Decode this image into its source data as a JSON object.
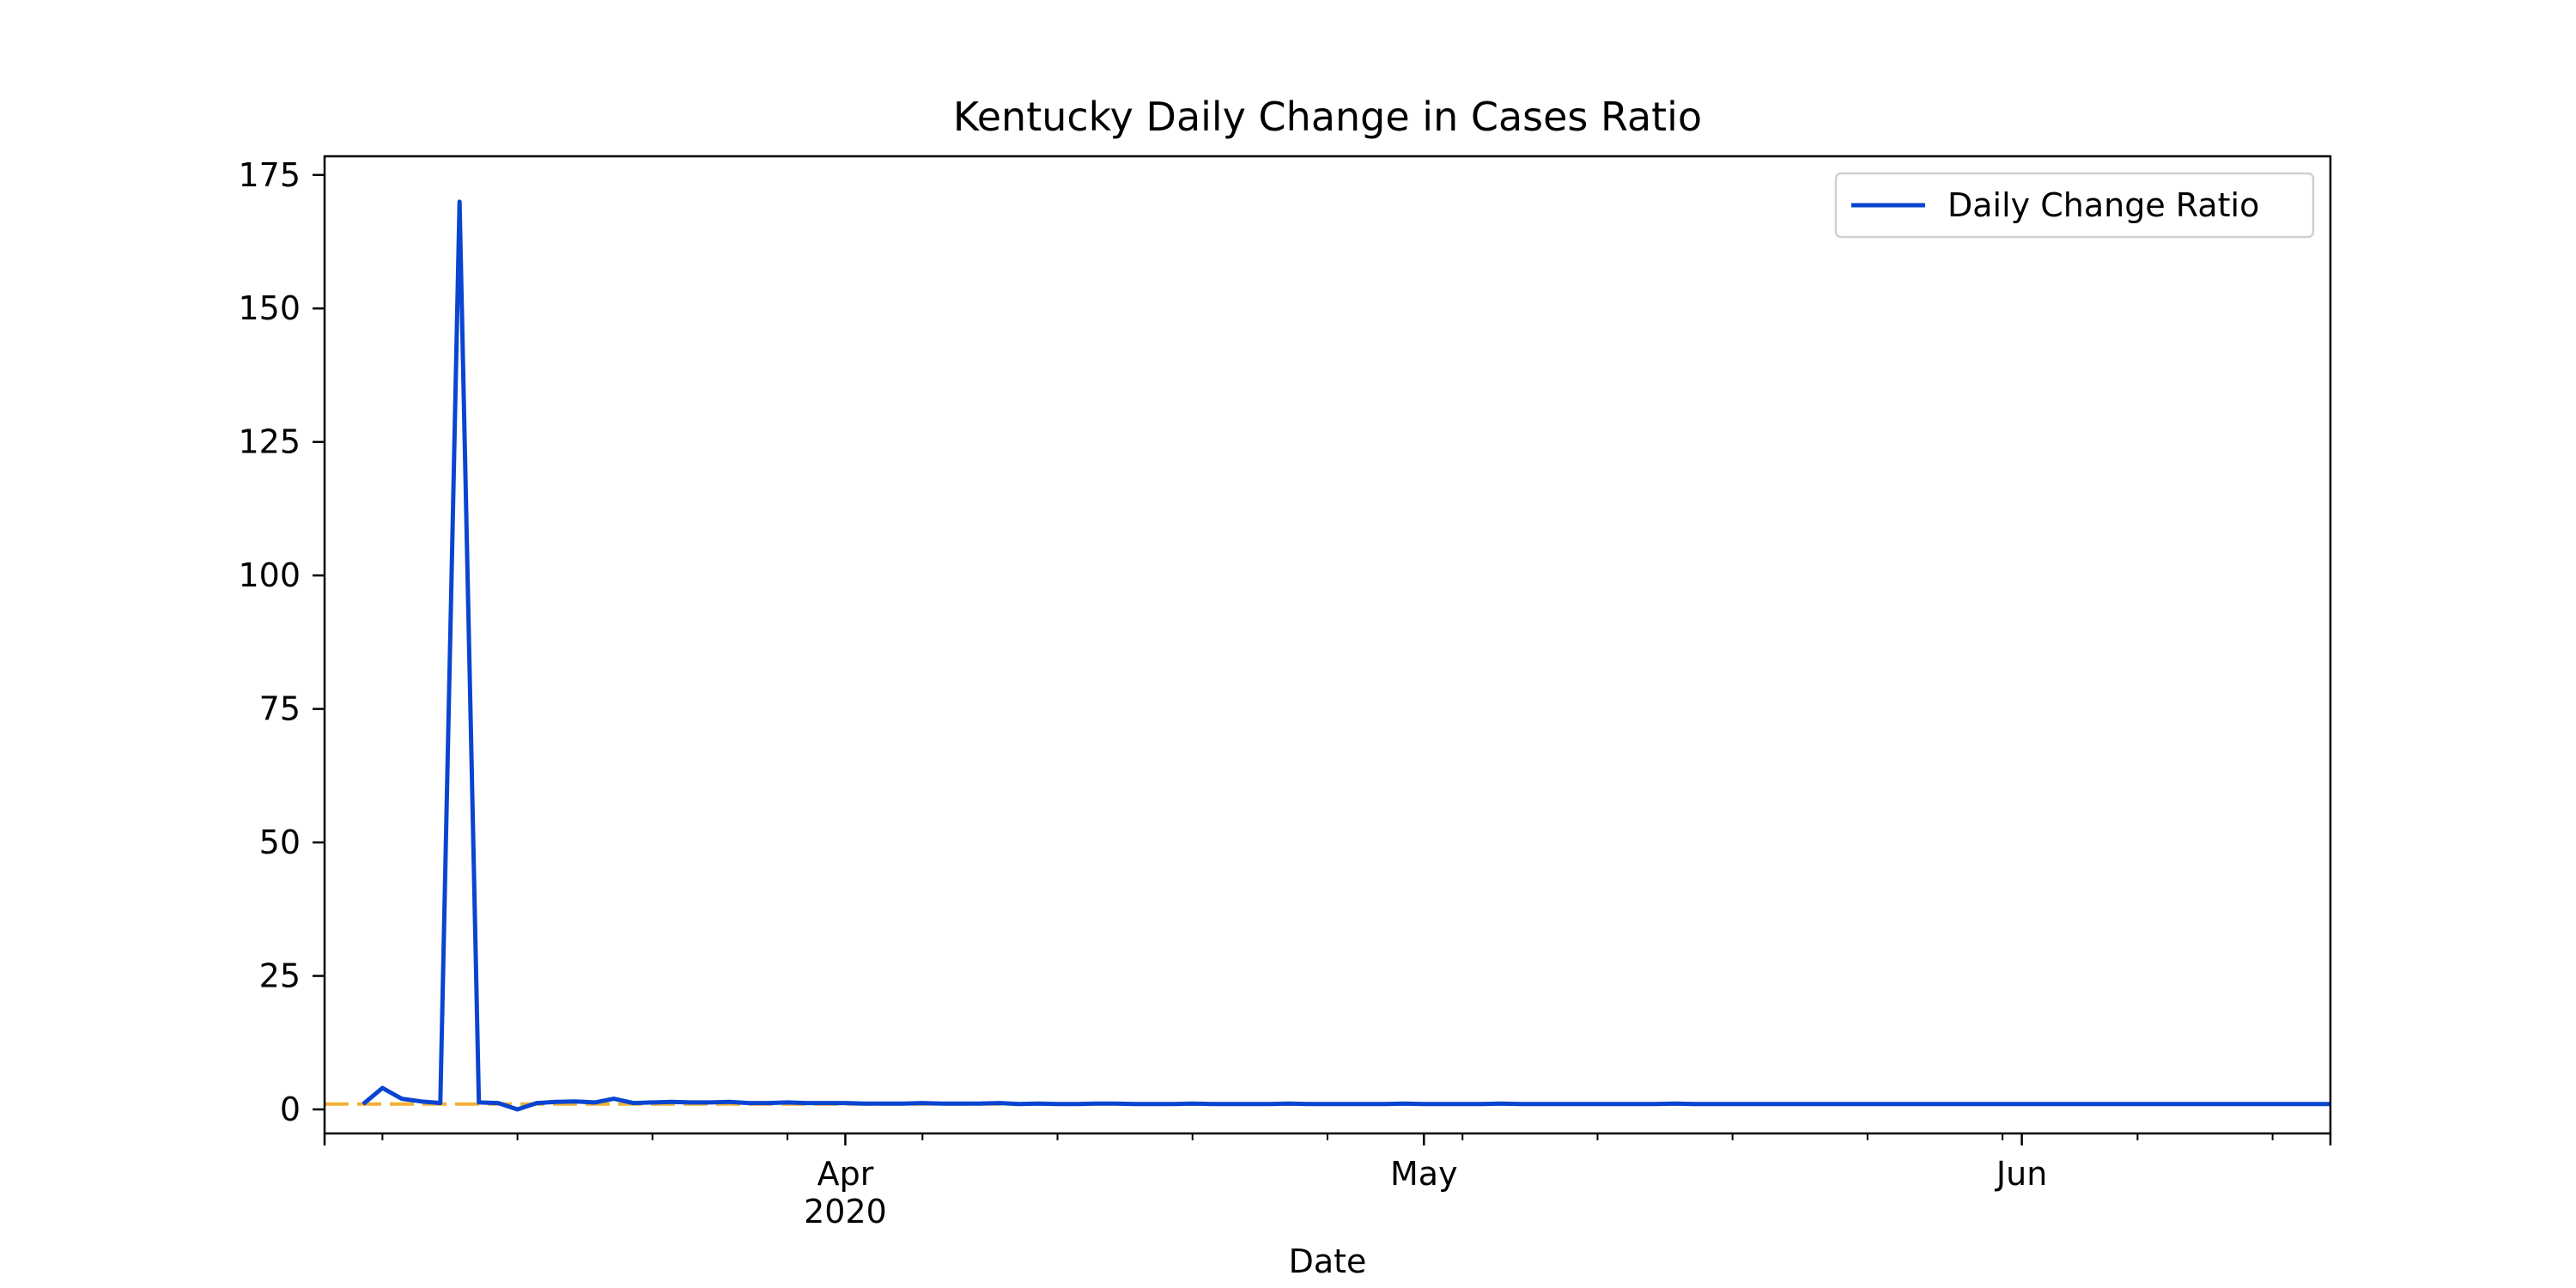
{
  "chart_data": {
    "type": "line",
    "title": "Kentucky Daily Change in Cases Ratio",
    "xlabel": "Date",
    "ylabel": "",
    "x_range": [
      "2020-03-05",
      "2020-06-17"
    ],
    "ylim": [
      -4.5,
      178.5
    ],
    "y_ticks": [
      0,
      25,
      50,
      75,
      100,
      125,
      150,
      175
    ],
    "x_major_ticks": [
      {
        "date": "2020-04-01",
        "label": "Apr",
        "sublabel": "2020"
      },
      {
        "date": "2020-05-01",
        "label": "May",
        "sublabel": ""
      },
      {
        "date": "2020-06-01",
        "label": "Jun",
        "sublabel": ""
      }
    ],
    "x_minor_ticks": [
      "2020-03-08",
      "2020-03-15",
      "2020-03-22",
      "2020-03-29",
      "2020-04-05",
      "2020-04-12",
      "2020-04-19",
      "2020-04-26",
      "2020-05-03",
      "2020-05-10",
      "2020-05-17",
      "2020-05-24",
      "2020-05-31",
      "2020-06-07",
      "2020-06-14"
    ],
    "grid": false,
    "legend": {
      "placement": "top-right",
      "entries": [
        "Daily Change Ratio"
      ]
    },
    "reference_line": {
      "y": 1.0,
      "color": "#f2b134",
      "style": "dashed"
    },
    "series": [
      {
        "name": "Daily Change Ratio",
        "color": "#0a45d1",
        "x": [
          "2020-03-07",
          "2020-03-08",
          "2020-03-09",
          "2020-03-10",
          "2020-03-11",
          "2020-03-12",
          "2020-03-13",
          "2020-03-14",
          "2020-03-15",
          "2020-03-16",
          "2020-03-17",
          "2020-03-18",
          "2020-03-19",
          "2020-03-20",
          "2020-03-21",
          "2020-03-22",
          "2020-03-23",
          "2020-03-24",
          "2020-03-25",
          "2020-03-26",
          "2020-03-27",
          "2020-03-28",
          "2020-03-29",
          "2020-03-30",
          "2020-03-31",
          "2020-04-01",
          "2020-04-02",
          "2020-04-03",
          "2020-04-04",
          "2020-04-05",
          "2020-04-06",
          "2020-04-07",
          "2020-04-08",
          "2020-04-09",
          "2020-04-10",
          "2020-04-11",
          "2020-04-12",
          "2020-04-13",
          "2020-04-14",
          "2020-04-15",
          "2020-04-16",
          "2020-04-17",
          "2020-04-18",
          "2020-04-19",
          "2020-04-20",
          "2020-04-21",
          "2020-04-22",
          "2020-04-23",
          "2020-04-24",
          "2020-04-25",
          "2020-04-26",
          "2020-04-27",
          "2020-04-28",
          "2020-04-29",
          "2020-04-30",
          "2020-05-01",
          "2020-05-02",
          "2020-05-03",
          "2020-05-04",
          "2020-05-05",
          "2020-05-06",
          "2020-05-07",
          "2020-05-08",
          "2020-05-09",
          "2020-05-10",
          "2020-05-11",
          "2020-05-12",
          "2020-05-13",
          "2020-05-14",
          "2020-05-15",
          "2020-05-16",
          "2020-05-17",
          "2020-05-18",
          "2020-05-19",
          "2020-05-20",
          "2020-05-21",
          "2020-05-22",
          "2020-05-23",
          "2020-05-24",
          "2020-05-25",
          "2020-05-26",
          "2020-05-27",
          "2020-05-28",
          "2020-05-29",
          "2020-05-30",
          "2020-05-31",
          "2020-06-01",
          "2020-06-02",
          "2020-06-03",
          "2020-06-04",
          "2020-06-05",
          "2020-06-06",
          "2020-06-07",
          "2020-06-08",
          "2020-06-09",
          "2020-06-10",
          "2020-06-11",
          "2020-06-12",
          "2020-06-13",
          "2020-06-14",
          "2020-06-15",
          "2020-06-16",
          "2020-06-17"
        ],
        "values": [
          1.0,
          4.0,
          2.0,
          1.5,
          1.2,
          170.0,
          1.3,
          1.2,
          0.0,
          1.2,
          1.4,
          1.5,
          1.3,
          2.0,
          1.2,
          1.3,
          1.4,
          1.3,
          1.3,
          1.4,
          1.2,
          1.2,
          1.3,
          1.2,
          1.2,
          1.2,
          1.1,
          1.1,
          1.1,
          1.2,
          1.1,
          1.1,
          1.1,
          1.2,
          1.0,
          1.1,
          1.0,
          1.0,
          1.1,
          1.1,
          1.0,
          1.0,
          1.0,
          1.1,
          1.0,
          1.0,
          1.0,
          1.0,
          1.1,
          1.0,
          1.0,
          1.0,
          1.0,
          1.0,
          1.1,
          1.0,
          1.0,
          1.0,
          1.0,
          1.1,
          1.0,
          1.0,
          1.0,
          1.0,
          1.0,
          1.0,
          1.0,
          1.0,
          1.1,
          1.0,
          1.0,
          1.0,
          1.0,
          1.0,
          1.0,
          1.0,
          1.0,
          1.0,
          1.0,
          1.0,
          1.0,
          1.0,
          1.0,
          1.0,
          1.0,
          1.0,
          1.0,
          1.0,
          1.0,
          1.0,
          1.0,
          1.0,
          1.0,
          1.0,
          1.0,
          1.0,
          1.0,
          1.0,
          1.0,
          1.0,
          1.0,
          1.0,
          1.0
        ]
      }
    ]
  }
}
